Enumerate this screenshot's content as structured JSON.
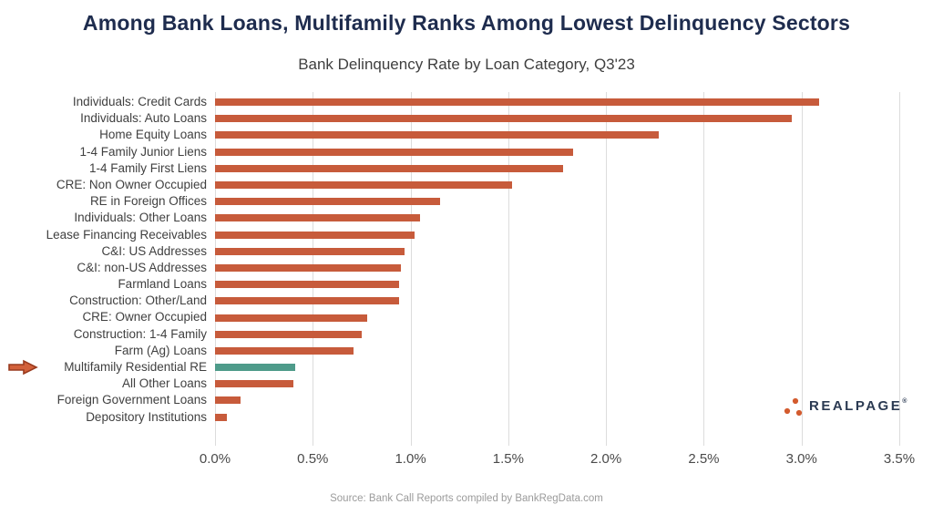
{
  "page": {
    "title": "Among Bank Loans, Multifamily Ranks Among Lowest Delinquency Sectors",
    "source": "Source: Bank Call Reports compiled by BankRegData.com",
    "logo_text": "REALPAGE",
    "logo_reg": "®"
  },
  "colors": {
    "title": "#1E2C4E",
    "bar": "#C75B3B",
    "highlight": "#4E9B8A",
    "arrow_fill": "#D2603A",
    "arrow_stroke": "#993A1E",
    "logo_dots": "#D35B2E",
    "gridline": "#DCDCDC"
  },
  "chart_data": {
    "type": "bar",
    "orientation": "horizontal",
    "title": "Bank Delinquency Rate by Loan Category, Q3'23",
    "categories": [
      "Individuals: Credit Cards",
      "Individuals: Auto Loans",
      "Home Equity Loans",
      "1-4 Family Junior Liens",
      "1-4 Family First Liens",
      "CRE: Non Owner Occupied",
      "RE in Foreign Offices",
      "Individuals: Other Loans",
      "Lease Financing Receivables",
      "C&I: US Addresses",
      "C&I: non-US Addresses",
      "Farmland Loans",
      "Construction: Other/Land",
      "CRE: Owner Occupied",
      "Construction: 1-4 Family",
      "Farm (Ag) Loans",
      "Multifamily Residential RE",
      "All Other Loans",
      "Foreign Government Loans",
      "Depository Institutions"
    ],
    "values": [
      3.09,
      2.95,
      2.27,
      1.83,
      1.78,
      1.52,
      1.15,
      1.05,
      1.02,
      0.97,
      0.95,
      0.94,
      0.94,
      0.78,
      0.75,
      0.71,
      0.41,
      0.4,
      0.13,
      0.06
    ],
    "value_unit": "%",
    "highlight_index": 16,
    "highlight_note": "arrow marker points at Multifamily Residential RE",
    "xlim": [
      0,
      3.5
    ],
    "xtick_labels": [
      "0.0%",
      "0.5%",
      "1.0%",
      "1.5%",
      "2.0%",
      "2.5%",
      "3.0%",
      "3.5%"
    ],
    "grid": true,
    "legend": false
  }
}
